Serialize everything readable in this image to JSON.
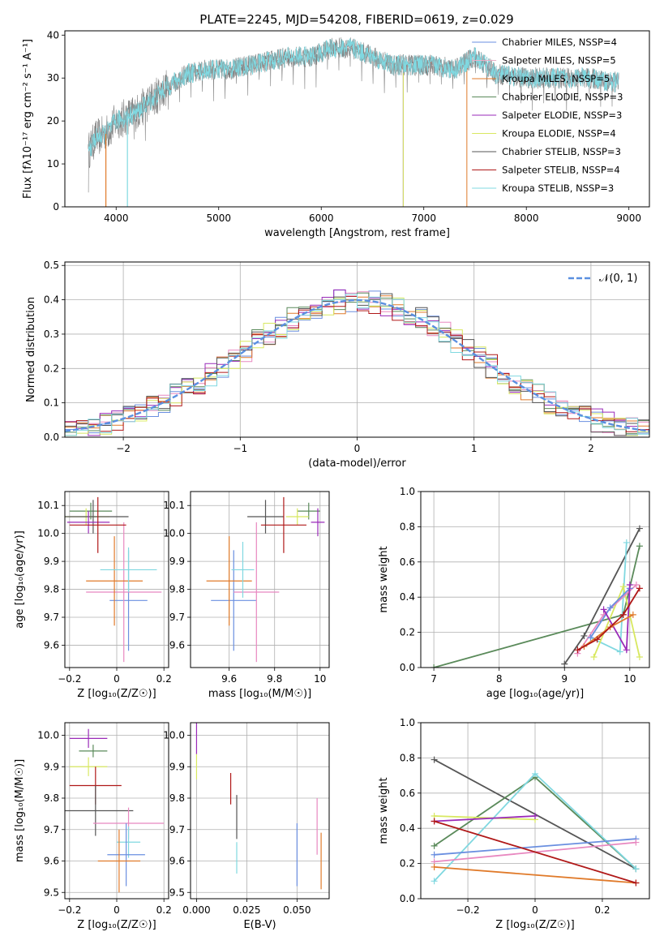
{
  "figure_title": "PLATE=2245, MJD=54208, FIBERID=0619, z=0.029",
  "colors": {
    "cmiles": "#6a8fe0",
    "smiles": "#e8b0c8",
    "kmiles": "#e07a2a",
    "celodie": "#5a8a5a",
    "selodie": "#9a2ab8",
    "kelodie": "#d8e860",
    "cstelib": "#555555",
    "sstelib": "#b01818",
    "kstelib": "#80d8e0",
    "pink": "#e888c0",
    "normal": "#5a8fe0"
  },
  "chart_data": [
    {
      "id": "spectrum",
      "type": "line",
      "title": "PLATE=2245, MJD=54208, FIBERID=0619, z=0.029",
      "xlabel": "wavelength [Angstrom, rest frame]",
      "ylabel": "Flux [fλ10⁻¹⁷ erg cm⁻² s⁻¹ A⁻¹]",
      "xlim": [
        3500,
        9200
      ],
      "ylim": [
        0,
        41
      ],
      "xticks": [
        4000,
        5000,
        6000,
        7000,
        8000,
        9000
      ],
      "yticks": [
        0,
        10,
        20,
        30,
        40
      ],
      "legend_position": "top-right",
      "legend": [
        "Chabrier MILES, NSSP=4",
        "Salpeter MILES, NSSP=5",
        "Kroupa MILES, NSSP=5",
        "Chabrier ELODIE, NSSP=3",
        "Salpeter ELODIE, NSSP=3",
        "Kroupa ELODIE, NSSP=4",
        "Chabrier STELIB, NSSP=3",
        "Salpeter STELIB, NSSP=4",
        "Kroupa STELIB, NSSP=3"
      ],
      "continuum": {
        "x": [
          3730,
          3800,
          3900,
          4000,
          4100,
          4200,
          4300,
          4400,
          4500,
          4700,
          4900,
          5100,
          5300,
          5500,
          5700,
          5900,
          6100,
          6300,
          6500,
          6700,
          6900,
          7100,
          7300,
          7500,
          7700,
          8000,
          8300,
          8600,
          8900
        ],
        "y": [
          13,
          16,
          17,
          20,
          21,
          22,
          24,
          26,
          28,
          31,
          32,
          32,
          33,
          34,
          35,
          35,
          37,
          37,
          35,
          33,
          33,
          33,
          32,
          35,
          31,
          30,
          30,
          30,
          29
        ]
      }
    },
    {
      "id": "residuals",
      "type": "line",
      "xlabel": "(data-model)/error",
      "ylabel": "Normed distribution",
      "xlim": [
        -2.5,
        2.5
      ],
      "ylim": [
        0,
        0.51
      ],
      "xticks": [
        -2,
        -1,
        0,
        1,
        2
      ],
      "yticks": [
        0.0,
        0.1,
        0.2,
        0.3,
        0.4,
        0.5
      ],
      "legend_position": "top-right",
      "legend": [
        "𝒩(0, 1)"
      ]
    },
    {
      "id": "age-vs-Z",
      "type": "scatter",
      "xlabel": "Z [log₁₀(Z/Z☉)]",
      "ylabel": "age  [log₁₀(age/yr)]",
      "xlim": [
        -0.22,
        0.22
      ],
      "ylim": [
        9.52,
        10.15
      ],
      "xticks": [
        -0.2,
        0.0,
        0.2
      ],
      "yticks": [
        9.6,
        9.7,
        9.8,
        9.9,
        10.0,
        10.1
      ],
      "points": [
        {
          "c": "cmiles",
          "x": 0.05,
          "y": 9.76,
          "xerr": 0.08,
          "yerr": 0.18
        },
        {
          "c": "pink",
          "x": 0.03,
          "y": 9.79,
          "xerr": 0.16,
          "yerr": 0.25
        },
        {
          "c": "kmiles",
          "x": -0.01,
          "y": 9.83,
          "xerr": 0.12,
          "yerr": 0.16
        },
        {
          "c": "kstelib",
          "x": 0.05,
          "y": 9.87,
          "xerr": 0.12,
          "yerr": 0.08
        },
        {
          "c": "celodie",
          "x": -0.11,
          "y": 10.08,
          "xerr": 0.09,
          "yerr": 0.03
        },
        {
          "c": "kelodie",
          "x": -0.13,
          "y": 10.06,
          "xerr": 0.1,
          "yerr": 0.03
        },
        {
          "c": "cstelib",
          "x": -0.1,
          "y": 10.06,
          "xerr": 0.15,
          "yerr": 0.06
        },
        {
          "c": "selodie",
          "x": -0.12,
          "y": 10.04,
          "xerr": 0.09,
          "yerr": 0.04
        },
        {
          "c": "sstelib",
          "x": -0.08,
          "y": 10.03,
          "xerr": 0.12,
          "yerr": 0.1
        }
      ]
    },
    {
      "id": "age-vs-mass",
      "type": "scatter",
      "xlabel": "mass [log₁₀(M/M☉)]",
      "ylabel": "",
      "xlim": [
        9.43,
        10.04
      ],
      "ylim": [
        9.52,
        10.15
      ],
      "xticks": [
        9.6,
        9.8,
        10.0
      ],
      "yticks": [
        9.6,
        9.7,
        9.8,
        9.9,
        10.0,
        10.1
      ],
      "points": [
        {
          "c": "cmiles",
          "x": 9.62,
          "y": 9.76,
          "xerr": 0.1,
          "yerr": 0.18
        },
        {
          "c": "kmiles",
          "x": 9.6,
          "y": 9.83,
          "xerr": 0.1,
          "yerr": 0.16
        },
        {
          "c": "pink",
          "x": 9.72,
          "y": 9.79,
          "xerr": 0.1,
          "yerr": 0.25
        },
        {
          "c": "kstelib",
          "x": 9.66,
          "y": 9.87,
          "xerr": 0.05,
          "yerr": 0.1
        },
        {
          "c": "cstelib",
          "x": 9.76,
          "y": 10.06,
          "xerr": 0.08,
          "yerr": 0.06
        },
        {
          "c": "celodie",
          "x": 9.95,
          "y": 10.08,
          "xerr": 0.05,
          "yerr": 0.03
        },
        {
          "c": "kelodie",
          "x": 9.9,
          "y": 10.06,
          "xerr": 0.05,
          "yerr": 0.03
        },
        {
          "c": "selodie",
          "x": 9.99,
          "y": 10.04,
          "xerr": 0.03,
          "yerr": 0.05
        },
        {
          "c": "sstelib",
          "x": 9.84,
          "y": 10.03,
          "xerr": 0.1,
          "yerr": 0.1
        }
      ]
    },
    {
      "id": "weight-vs-age",
      "type": "line",
      "xlabel": "age  [log₁₀(age/yr)]",
      "ylabel": "mass weight",
      "xlim": [
        6.8,
        10.3
      ],
      "ylim": [
        0,
        1.0
      ],
      "xticks": [
        7,
        8,
        9,
        10
      ],
      "yticks": [
        0.0,
        0.2,
        0.4,
        0.6,
        0.8,
        1.0
      ],
      "series": [
        {
          "c": "celodie",
          "x": [
            7.0,
            9.9,
            10.15
          ],
          "y": [
            0.0,
            0.3,
            0.69
          ]
        },
        {
          "c": "cstelib",
          "x": [
            9.0,
            9.3,
            10.15
          ],
          "y": [
            0.02,
            0.18,
            0.79
          ]
        },
        {
          "c": "kstelib",
          "x": [
            9.4,
            9.85,
            9.95
          ],
          "y": [
            0.17,
            0.09,
            0.71
          ]
        },
        {
          "c": "kelodie",
          "x": [
            9.45,
            9.9,
            10.15
          ],
          "y": [
            0.06,
            0.46,
            0.06
          ]
        },
        {
          "c": "pink",
          "x": [
            9.2,
            9.6,
            10.1
          ],
          "y": [
            0.08,
            0.3,
            0.47
          ]
        },
        {
          "c": "cmiles",
          "x": [
            9.4,
            9.7,
            10.0
          ],
          "y": [
            0.17,
            0.34,
            0.45
          ]
        },
        {
          "c": "selodie",
          "x": [
            9.6,
            9.95,
            10.0
          ],
          "y": [
            0.33,
            0.1,
            0.47
          ]
        },
        {
          "c": "kmiles",
          "x": [
            9.3,
            9.7,
            10.05
          ],
          "y": [
            0.12,
            0.23,
            0.3
          ]
        },
        {
          "c": "sstelib",
          "x": [
            9.2,
            9.5,
            9.9,
            10.15
          ],
          "y": [
            0.1,
            0.16,
            0.3,
            0.45
          ]
        }
      ]
    },
    {
      "id": "mass-vs-Z",
      "type": "scatter",
      "xlabel": "Z [log₁₀(Z/Z☉)]",
      "ylabel": "mass [log₁₀(M/M☉)]",
      "xlim": [
        -0.22,
        0.22
      ],
      "ylim": [
        9.48,
        10.04
      ],
      "xticks": [
        -0.2,
        0.0,
        0.2
      ],
      "yticks": [
        9.5,
        9.6,
        9.7,
        9.8,
        9.9,
        10.0
      ],
      "points": [
        {
          "c": "selodie",
          "x": -0.12,
          "y": 9.99,
          "xerr": 0.08,
          "yerr": 0.03
        },
        {
          "c": "celodie",
          "x": -0.1,
          "y": 9.95,
          "xerr": 0.06,
          "yerr": 0.02
        },
        {
          "c": "kelodie",
          "x": -0.12,
          "y": 9.9,
          "xerr": 0.08,
          "yerr": 0.03
        },
        {
          "c": "sstelib",
          "x": -0.09,
          "y": 9.84,
          "xerr": 0.11,
          "yerr": 0.06
        },
        {
          "c": "cstelib",
          "x": -0.09,
          "y": 9.76,
          "xerr": 0.16,
          "yerr": 0.08
        },
        {
          "c": "pink",
          "x": 0.05,
          "y": 9.72,
          "xerr": 0.15,
          "yerr": 0.05
        },
        {
          "c": "kstelib",
          "x": 0.05,
          "y": 9.66,
          "xerr": 0.05,
          "yerr": 0.05
        },
        {
          "c": "cmiles",
          "x": 0.04,
          "y": 9.62,
          "xerr": 0.08,
          "yerr": 0.1
        },
        {
          "c": "kmiles",
          "x": 0.01,
          "y": 9.6,
          "xerr": 0.09,
          "yerr": 0.1
        }
      ]
    },
    {
      "id": "mass-vs-EBV",
      "type": "scatter",
      "xlabel": "E(B-V)",
      "ylabel": "",
      "xlim": [
        -0.003,
        0.066
      ],
      "ylim": [
        9.48,
        10.04
      ],
      "xticks": [
        0.0,
        0.025,
        0.05
      ],
      "xticklabels": [
        "0.000",
        "0.025",
        "0.050"
      ],
      "yticks": [
        9.5,
        9.6,
        9.7,
        9.8,
        9.9,
        10.0
      ],
      "points": [
        {
          "c": "selodie",
          "x": 0.0,
          "y": 9.99,
          "xerr": 0,
          "yerr": 0.05
        },
        {
          "c": "kelodie",
          "x": 0.0,
          "y": 9.9,
          "xerr": 0,
          "yerr": 0.04
        },
        {
          "c": "sstelib",
          "x": 0.017,
          "y": 9.83,
          "xerr": 0,
          "yerr": 0.05
        },
        {
          "c": "cstelib",
          "x": 0.02,
          "y": 9.74,
          "xerr": 0,
          "yerr": 0.07
        },
        {
          "c": "kstelib",
          "x": 0.02,
          "y": 9.61,
          "xerr": 0,
          "yerr": 0.05
        },
        {
          "c": "cmiles",
          "x": 0.05,
          "y": 9.62,
          "xerr": 0,
          "yerr": 0.1
        },
        {
          "c": "pink",
          "x": 0.06,
          "y": 9.71,
          "xerr": 0,
          "yerr": 0.09
        },
        {
          "c": "kmiles",
          "x": 0.062,
          "y": 9.6,
          "xerr": 0,
          "yerr": 0.09
        }
      ]
    },
    {
      "id": "weight-vs-Z",
      "type": "line",
      "xlabel": "Z [log₁₀(Z/Z☉)]",
      "ylabel": "mass weight",
      "xlim": [
        -0.34,
        0.34
      ],
      "ylim": [
        0,
        1.0
      ],
      "xticks": [
        -0.2,
        0.0,
        0.2
      ],
      "yticks": [
        0.0,
        0.2,
        0.4,
        0.6,
        0.8,
        1.0
      ],
      "series": [
        {
          "c": "cstelib",
          "x": [
            -0.3,
            0.3
          ],
          "y": [
            0.79,
            0.17
          ]
        },
        {
          "c": "celodie",
          "x": [
            -0.3,
            0.0,
            0.3
          ],
          "y": [
            0.3,
            0.69,
            0.17
          ]
        },
        {
          "c": "kstelib",
          "x": [
            -0.3,
            0.0,
            0.3
          ],
          "y": [
            0.1,
            0.71,
            0.17
          ]
        },
        {
          "c": "kelodie",
          "x": [
            -0.3,
            0.0
          ],
          "y": [
            0.47,
            0.45
          ]
        },
        {
          "c": "selodie",
          "x": [
            -0.3,
            0.0
          ],
          "y": [
            0.44,
            0.47
          ]
        },
        {
          "c": "cmiles",
          "x": [
            -0.3,
            0.3
          ],
          "y": [
            0.25,
            0.34
          ]
        },
        {
          "c": "pink",
          "x": [
            -0.3,
            0.3
          ],
          "y": [
            0.21,
            0.32
          ]
        },
        {
          "c": "kmiles",
          "x": [
            -0.3,
            0.3
          ],
          "y": [
            0.18,
            0.09
          ]
        },
        {
          "c": "sstelib",
          "x": [
            -0.3,
            0.3
          ],
          "y": [
            0.44,
            0.09
          ]
        }
      ]
    }
  ]
}
